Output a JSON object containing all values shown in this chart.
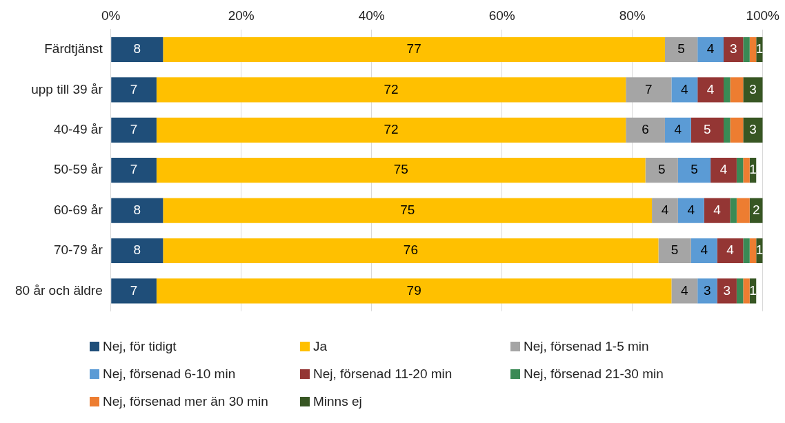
{
  "chart_data": {
    "type": "bar",
    "orientation": "horizontal",
    "stacked": true,
    "categories": [
      "Färdtjänst",
      "upp till 39 år",
      "40-49 år",
      "50-59 år",
      "60-69 år",
      "70-79 år",
      "80 år och äldre"
    ],
    "series": [
      {
        "name": "Nej, för tidigt",
        "color": "#1f4e79",
        "values": [
          8,
          7,
          7,
          7,
          8,
          8,
          7
        ],
        "value_labels": [
          "8",
          "7",
          "7",
          "7",
          "8",
          "8",
          "7"
        ]
      },
      {
        "name": "Ja",
        "color": "#ffc000",
        "values": [
          77,
          72,
          72,
          75,
          75,
          76,
          79
        ],
        "value_labels": [
          "77",
          "72",
          "72",
          "75",
          "75",
          "76",
          "79"
        ]
      },
      {
        "name": "Nej, försenad 1-5 min",
        "color": "#a5a5a5",
        "values": [
          5,
          7,
          6,
          5,
          4,
          5,
          4
        ],
        "value_labels": [
          "5",
          "7",
          "6",
          "5",
          "4",
          "5",
          "4"
        ]
      },
      {
        "name": "Nej, försenad 6-10 min",
        "color": "#5b9bd5",
        "values": [
          4,
          4,
          4,
          5,
          4,
          4,
          3
        ],
        "value_labels": [
          "4",
          "4",
          "4",
          "5",
          "4",
          "4",
          "3"
        ]
      },
      {
        "name": "Nej, försenad 11-20 min",
        "color": "#943634",
        "values": [
          3,
          4,
          5,
          4,
          4,
          4,
          3
        ],
        "value_labels": [
          "3",
          "4",
          "5",
          "4",
          "4",
          "4",
          "3"
        ]
      },
      {
        "name": "Nej, försenad 21-30 min",
        "color": "#3a8a55",
        "values": [
          1,
          1,
          1,
          1,
          1,
          1,
          1
        ],
        "value_labels": [
          null,
          null,
          null,
          null,
          null,
          null,
          null
        ]
      },
      {
        "name": "Nej, försenad mer än 30 min",
        "color": "#ed7d31",
        "values": [
          1,
          2,
          2,
          1,
          2,
          1,
          1
        ],
        "value_labels": [
          null,
          null,
          null,
          null,
          null,
          null,
          null
        ]
      },
      {
        "name": "Minns ej",
        "color": "#375623",
        "values": [
          1,
          3,
          3,
          1,
          2,
          1,
          1
        ],
        "value_labels": [
          "1",
          "3",
          "3",
          "1",
          "2",
          "1",
          "1"
        ]
      }
    ],
    "xlim": [
      0,
      100
    ],
    "xticks": [
      {
        "value": 0,
        "label": "0%"
      },
      {
        "value": 20,
        "label": "20%"
      },
      {
        "value": 40,
        "label": "40%"
      },
      {
        "value": 60,
        "label": "60%"
      },
      {
        "value": 80,
        "label": "80%"
      },
      {
        "value": 100,
        "label": "100%"
      }
    ],
    "grid": "x",
    "legend": "bottom"
  }
}
